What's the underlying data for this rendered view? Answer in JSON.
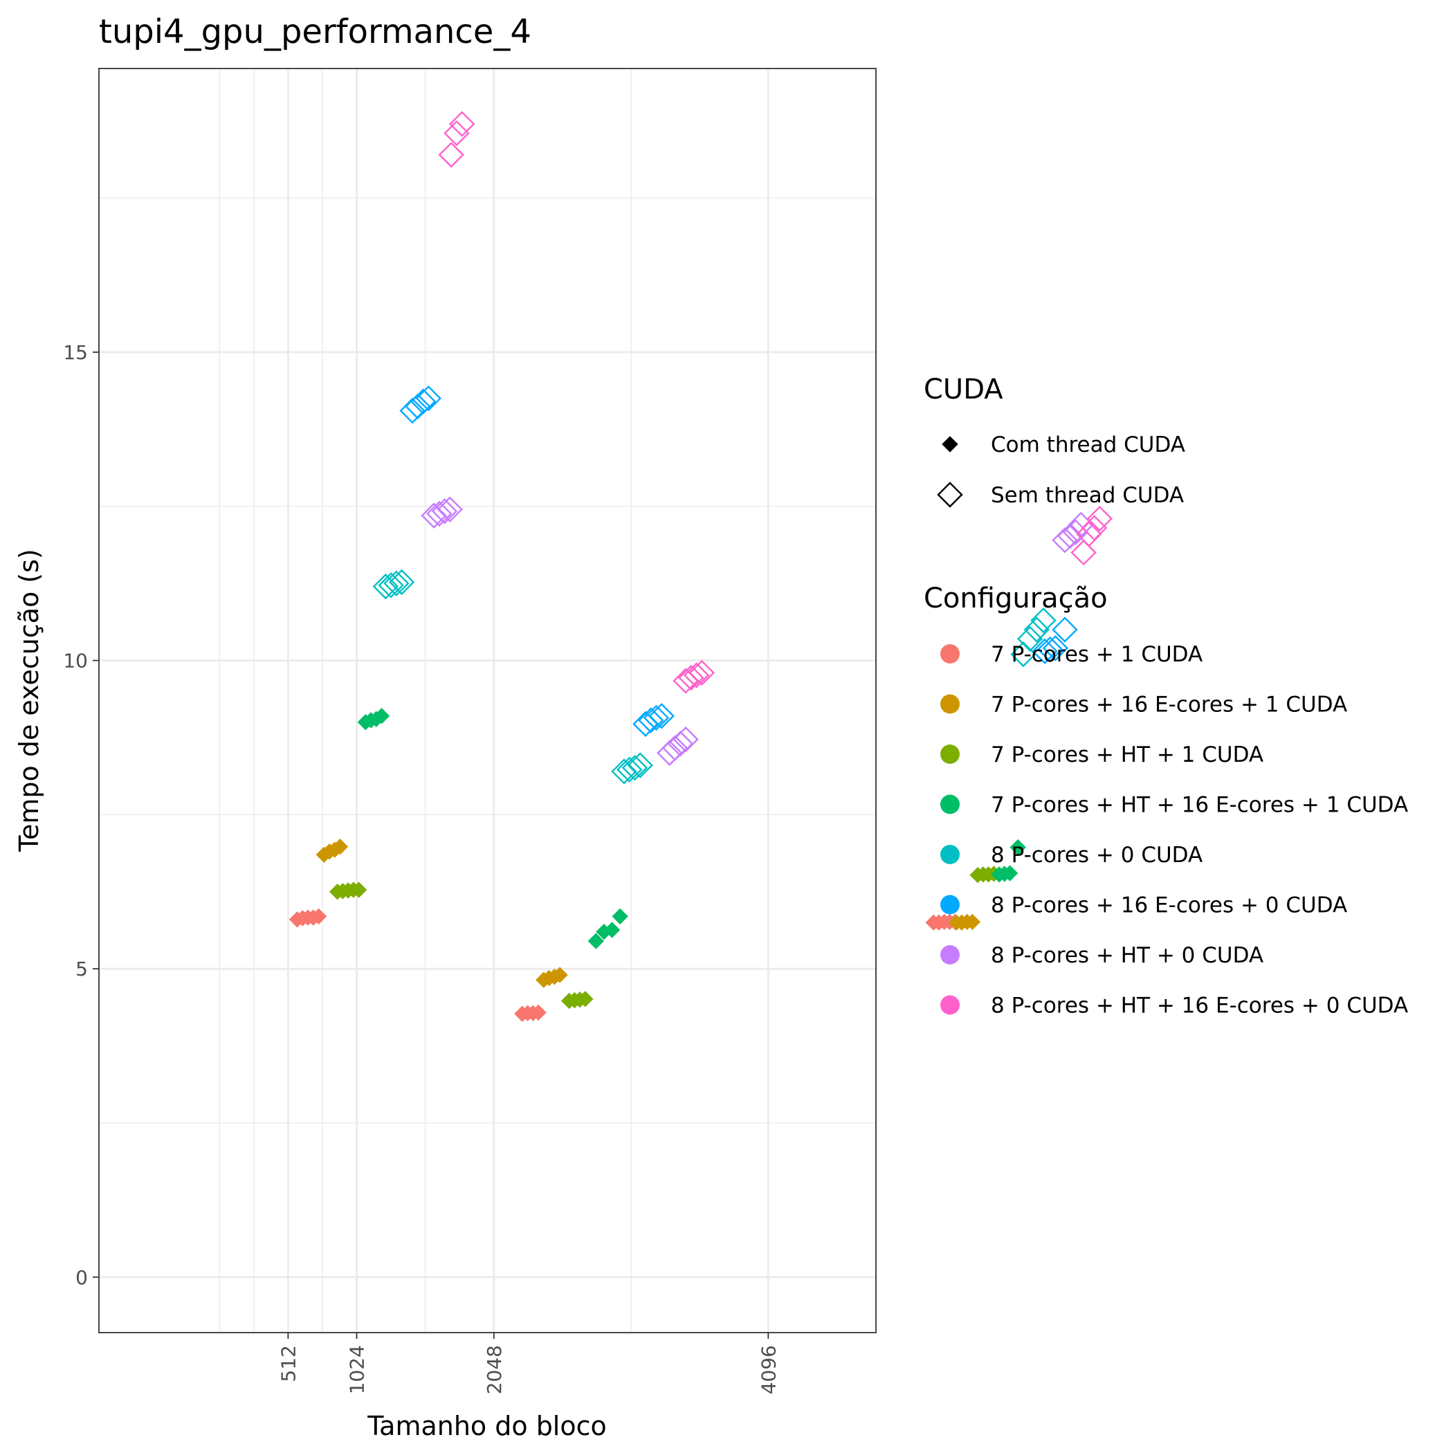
{
  "chart_data": {
    "type": "scatter",
    "title": "tupi4_gpu_performance_4",
    "xlabel": "Tamanho do bloco",
    "ylabel": "Tempo de execução (s)",
    "xlim": [
      -900,
      4900
    ],
    "ylim": [
      -0.9,
      19.6
    ],
    "x_ticks": [
      512,
      1024,
      2048,
      4096
    ],
    "x_tick_labels": [
      "512",
      "1024",
      "2048",
      "4096"
    ],
    "y_ticks": [
      0,
      5,
      10,
      15
    ],
    "y_tick_labels": [
      "0",
      "5",
      "10",
      "15"
    ],
    "grid": true,
    "legend_position": "right",
    "shape_legend": {
      "title": "CUDA",
      "entries": [
        {
          "label": "Com thread CUDA",
          "shape": "filled-diamond"
        },
        {
          "label": "Sem thread CUDA",
          "shape": "open-diamond"
        }
      ]
    },
    "series": [
      {
        "name": "7 P-cores + 1 CUDA",
        "color": "#F8766D",
        "cuda": "Com thread CUDA",
        "points": [
          [
            580,
            5.8
          ],
          [
            620,
            5.82
          ],
          [
            660,
            5.83
          ],
          [
            700,
            5.83
          ],
          [
            740,
            5.85
          ]
        ]
      },
      {
        "name": "7 P-cores + 16 E-cores + 1 CUDA",
        "color": "#CD9600",
        "cuda": "Com thread CUDA",
        "points": [
          [
            780,
            6.85
          ],
          [
            820,
            6.9
          ],
          [
            860,
            6.93
          ],
          [
            900,
            6.98
          ]
        ]
      },
      {
        "name": "7 P-cores + HT + 1 CUDA",
        "color": "#7CAE00",
        "cuda": "Com thread CUDA",
        "points": [
          [
            880,
            6.25
          ],
          [
            920,
            6.26
          ],
          [
            960,
            6.27
          ],
          [
            1000,
            6.28
          ],
          [
            1040,
            6.28
          ]
        ]
      },
      {
        "name": "7 P-cores + HT + 16 E-cores + 1 CUDA",
        "color": "#00BE67",
        "cuda": "Com thread CUDA",
        "points": [
          [
            1090,
            9.0
          ],
          [
            1130,
            9.03
          ],
          [
            1170,
            9.05
          ],
          [
            1210,
            9.1
          ]
        ]
      },
      {
        "name": "8 P-cores + 0 CUDA",
        "color": "#00BFC4",
        "cuda": "Sem thread CUDA",
        "points": [
          [
            1240,
            11.2
          ],
          [
            1280,
            11.22
          ],
          [
            1320,
            11.25
          ],
          [
            1360,
            11.27
          ]
        ]
      },
      {
        "name": "8 P-cores + 16 E-cores + 0 CUDA",
        "color": "#00A9FF",
        "cuda": "Sem thread CUDA",
        "points": [
          [
            1440,
            14.05
          ],
          [
            1480,
            14.12
          ],
          [
            1520,
            14.2
          ],
          [
            1560,
            14.25
          ]
        ]
      },
      {
        "name": "8 P-cores + HT + 0 CUDA",
        "color": "#C77CFF",
        "cuda": "Sem thread CUDA",
        "points": [
          [
            1600,
            12.35
          ],
          [
            1640,
            12.38
          ],
          [
            1680,
            12.42
          ],
          [
            1720,
            12.45
          ]
        ]
      },
      {
        "name": "8 P-cores + HT + 16 E-cores + 0 CUDA",
        "color": "#FF61CC",
        "cuda": "Sem thread CUDA",
        "points": [
          [
            1730,
            18.2
          ],
          [
            1770,
            18.55
          ],
          [
            1810,
            18.7
          ]
        ]
      },
      {
        "name": "7 P-cores + 1 CUDA",
        "color": "#F8766D",
        "cuda": "Com thread CUDA",
        "points": [
          [
            2260,
            4.27
          ],
          [
            2300,
            4.28
          ],
          [
            2340,
            4.28
          ],
          [
            2380,
            4.29
          ]
        ]
      },
      {
        "name": "7 P-cores + 16 E-cores + 1 CUDA",
        "color": "#CD9600",
        "cuda": "Com thread CUDA",
        "points": [
          [
            2420,
            4.82
          ],
          [
            2460,
            4.85
          ],
          [
            2500,
            4.87
          ],
          [
            2540,
            4.9
          ]
        ]
      },
      {
        "name": "7 P-cores + HT + 1 CUDA",
        "color": "#7CAE00",
        "cuda": "Com thread CUDA",
        "points": [
          [
            2610,
            4.48
          ],
          [
            2650,
            4.49
          ],
          [
            2690,
            4.5
          ],
          [
            2730,
            4.51
          ]
        ]
      },
      {
        "name": "7 P-cores + HT + 16 E-cores + 1 CUDA",
        "color": "#00BE67",
        "cuda": "Com thread CUDA",
        "points": [
          [
            2810,
            5.45
          ],
          [
            2870,
            5.6
          ],
          [
            2930,
            5.63
          ],
          [
            2990,
            5.85
          ]
        ]
      },
      {
        "name": "8 P-cores + 0 CUDA",
        "color": "#00BFC4",
        "cuda": "Sem thread CUDA",
        "points": [
          [
            3020,
            8.2
          ],
          [
            3060,
            8.23
          ],
          [
            3100,
            8.26
          ],
          [
            3140,
            8.3
          ]
        ]
      },
      {
        "name": "8 P-cores + 16 E-cores + 0 CUDA",
        "color": "#00A9FF",
        "cuda": "Sem thread CUDA",
        "points": [
          [
            3180,
            8.97
          ],
          [
            3220,
            9.03
          ],
          [
            3260,
            9.07
          ],
          [
            3300,
            9.1
          ]
        ]
      },
      {
        "name": "8 P-cores + HT + 0 CUDA",
        "color": "#C77CFF",
        "cuda": "Sem thread CUDA",
        "points": [
          [
            3360,
            8.5
          ],
          [
            3400,
            8.58
          ],
          [
            3440,
            8.65
          ],
          [
            3480,
            8.72
          ]
        ]
      },
      {
        "name": "8 P-cores + HT + 16 E-cores + 0 CUDA",
        "color": "#FF61CC",
        "cuda": "Sem thread CUDA",
        "points": [
          [
            3480,
            9.67
          ],
          [
            3520,
            9.72
          ],
          [
            3560,
            9.76
          ],
          [
            3600,
            9.8
          ]
        ]
      },
      {
        "name": "7 P-cores + 1 CUDA",
        "color": "#F8766D",
        "cuda": "Com thread CUDA",
        "points": [
          [
            5330,
            5.75
          ],
          [
            5370,
            5.75
          ],
          [
            5410,
            5.76
          ],
          [
            5450,
            5.76
          ],
          [
            5490,
            5.76
          ]
        ]
      },
      {
        "name": "7 P-cores + 16 E-cores + 1 CUDA",
        "color": "#CD9600",
        "cuda": "Com thread CUDA",
        "points": [
          [
            5500,
            5.75
          ],
          [
            5540,
            5.75
          ],
          [
            5580,
            5.76
          ],
          [
            5620,
            5.76
          ]
        ]
      },
      {
        "name": "7 P-cores + HT + 1 CUDA",
        "color": "#7CAE00",
        "cuda": "Com thread CUDA",
        "points": [
          [
            5660,
            6.52
          ],
          [
            5700,
            6.53
          ],
          [
            5740,
            6.53
          ],
          [
            5780,
            6.54
          ]
        ]
      },
      {
        "name": "7 P-cores + HT + 16 E-cores + 1 CUDA",
        "color": "#00BE67",
        "cuda": "Com thread CUDA",
        "points": [
          [
            5820,
            6.53
          ],
          [
            5860,
            6.54
          ],
          [
            5900,
            6.55
          ],
          [
            5960,
            6.97
          ]
        ]
      },
      {
        "name": "8 P-cores + 0 CUDA",
        "color": "#00BFC4",
        "cuda": "Sem thread CUDA",
        "points": [
          [
            6000,
            10.1
          ],
          [
            6050,
            10.35
          ],
          [
            6100,
            10.5
          ],
          [
            6150,
            10.65
          ]
        ]
      },
      {
        "name": "8 P-cores + 16 E-cores + 0 CUDA",
        "color": "#00A9FF",
        "cuda": "Sem thread CUDA",
        "points": [
          [
            6160,
            10.15
          ],
          [
            6200,
            10.18
          ],
          [
            6240,
            10.2
          ],
          [
            6310,
            10.5
          ]
        ]
      },
      {
        "name": "8 P-cores + HT + 0 CUDA",
        "color": "#C77CFF",
        "cuda": "Sem thread CUDA",
        "points": [
          [
            6310,
            11.95
          ],
          [
            6350,
            12.02
          ],
          [
            6390,
            12.08
          ],
          [
            6430,
            12.2
          ]
        ]
      },
      {
        "name": "8 P-cores + HT + 16 E-cores + 0 CUDA",
        "color": "#FF61CC",
        "cuda": "Sem thread CUDA",
        "points": [
          [
            6450,
            11.75
          ],
          [
            6490,
            12.05
          ],
          [
            6530,
            12.15
          ],
          [
            6570,
            12.3
          ]
        ]
      }
    ],
    "legend": {
      "title": "Configuração",
      "entries": [
        {
          "label": "7 P-cores + 1 CUDA",
          "color": "#F8766D"
        },
        {
          "label": "7 P-cores + 16 E-cores + 1 CUDA",
          "color": "#CD9600"
        },
        {
          "label": "7 P-cores + HT + 1 CUDA",
          "color": "#7CAE00"
        },
        {
          "label": "7 P-cores + HT + 16 E-cores + 1 CUDA",
          "color": "#00BE67"
        },
        {
          "label": "8 P-cores + 0 CUDA",
          "color": "#00BFC4"
        },
        {
          "label": "8 P-cores + 16 E-cores + 0 CUDA",
          "color": "#00A9FF"
        },
        {
          "label": "8 P-cores + HT + 0 CUDA",
          "color": "#C77CFF"
        },
        {
          "label": "8 P-cores + HT + 16 E-cores + 0 CUDA",
          "color": "#FF61CC"
        }
      ]
    }
  }
}
